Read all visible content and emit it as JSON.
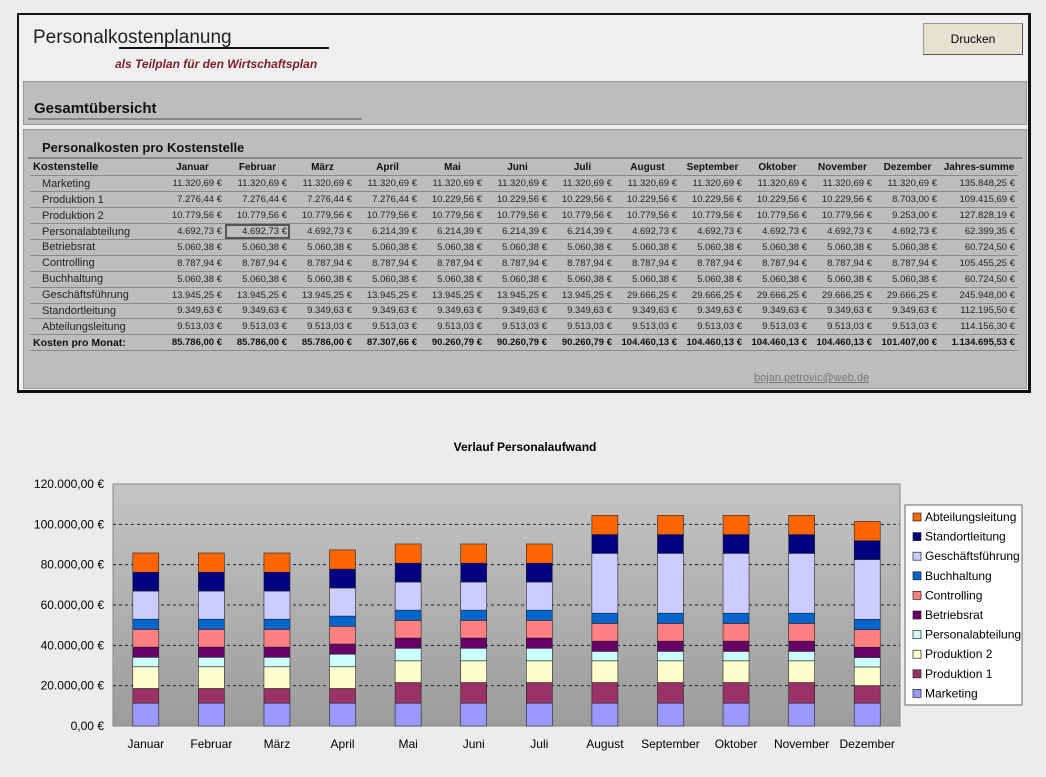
{
  "header": {
    "title": "Personalkostenplanung",
    "subtitle": "als Teilplan für den Wirtschaftsplan",
    "print_label": "Drucken"
  },
  "overview_title": "Gesamtübersicht",
  "table": {
    "title": "Personalkosten pro Kostenstelle",
    "corner": "Kostenstelle",
    "columns": [
      "Januar",
      "Februar",
      "März",
      "April",
      "Mai",
      "Juni",
      "Juli",
      "August",
      "September",
      "Oktober",
      "November",
      "Dezember",
      "Jahres-summe"
    ],
    "rows": [
      {
        "label": "Marketing",
        "cells": [
          "11.320,69 €",
          "11.320,69 €",
          "11.320,69 €",
          "11.320,69 €",
          "11.320,69 €",
          "11.320,69 €",
          "11.320,69 €",
          "11.320,69 €",
          "11.320,69 €",
          "11.320,69 €",
          "11.320,69 €",
          "11.320,69 €",
          "135.848,25 €"
        ]
      },
      {
        "label": "Produktion 1",
        "cells": [
          "7.276,44 €",
          "7.276,44 €",
          "7.276,44 €",
          "7.276,44 €",
          "10.229,56 €",
          "10.229,56 €",
          "10.229,56 €",
          "10.229,56 €",
          "10.229,56 €",
          "10.229,56 €",
          "10.229,56 €",
          "8.703,00 €",
          "109.415,69 €"
        ]
      },
      {
        "label": "Produktion 2",
        "cells": [
          "10.779,56 €",
          "10.779,56 €",
          "10.779,56 €",
          "10.779,56 €",
          "10.779,56 €",
          "10.779,56 €",
          "10.779,56 €",
          "10.779,56 €",
          "10.779,56 €",
          "10.779,56 €",
          "10.779,56 €",
          "9.253,00 €",
          "127.828,19 €"
        ]
      },
      {
        "label": "Personalabteilung",
        "cells": [
          "4.692,73 €",
          "4.692,73 €",
          "4.692,73 €",
          "6.214,39 €",
          "6.214,39 €",
          "6.214,39 €",
          "6.214,39 €",
          "4.692,73 €",
          "4.692,73 €",
          "4.692,73 €",
          "4.692,73 €",
          "4.692,73 €",
          "62.399,35 €"
        ]
      },
      {
        "label": "Betriebsrat",
        "cells": [
          "5.060,38 €",
          "5.060,38 €",
          "5.060,38 €",
          "5.060,38 €",
          "5.060,38 €",
          "5.060,38 €",
          "5.060,38 €",
          "5.060,38 €",
          "5.060,38 €",
          "5.060,38 €",
          "5.060,38 €",
          "5.060,38 €",
          "60.724,50 €"
        ]
      },
      {
        "label": "Controlling",
        "cells": [
          "8.787,94 €",
          "8.787,94 €",
          "8.787,94 €",
          "8.787,94 €",
          "8.787,94 €",
          "8.787,94 €",
          "8.787,94 €",
          "8.787,94 €",
          "8.787,94 €",
          "8.787,94 €",
          "8.787,94 €",
          "8.787,94 €",
          "105.455,25 €"
        ]
      },
      {
        "label": "Buchhaltung",
        "cells": [
          "5.060,38 €",
          "5.060,38 €",
          "5.060,38 €",
          "5.060,38 €",
          "5.060,38 €",
          "5.060,38 €",
          "5.060,38 €",
          "5.060,38 €",
          "5.060,38 €",
          "5.060,38 €",
          "5.060,38 €",
          "5.060,38 €",
          "60.724,50 €"
        ]
      },
      {
        "label": "Geschäftsführung",
        "cells": [
          "13.945,25 €",
          "13.945,25 €",
          "13.945,25 €",
          "13.945,25 €",
          "13.945,25 €",
          "13.945,25 €",
          "13.945,25 €",
          "29.666,25 €",
          "29.666,25 €",
          "29.666,25 €",
          "29.666,25 €",
          "29.666,25 €",
          "245.948,00 €"
        ]
      },
      {
        "label": "Standortleitung",
        "cells": [
          "9.349,63 €",
          "9.349,63 €",
          "9.349,63 €",
          "9.349,63 €",
          "9.349,63 €",
          "9.349,63 €",
          "9.349,63 €",
          "9.349,63 €",
          "9.349,63 €",
          "9.349,63 €",
          "9.349,63 €",
          "9.349,63 €",
          "112.195,50 €"
        ]
      },
      {
        "label": "Abteilungsleitung",
        "cells": [
          "9.513,03 €",
          "9.513,03 €",
          "9.513,03 €",
          "9.513,03 €",
          "9.513,03 €",
          "9.513,03 €",
          "9.513,03 €",
          "9.513,03 €",
          "9.513,03 €",
          "9.513,03 €",
          "9.513,03 €",
          "9.513,03 €",
          "114.156,30 €"
        ]
      }
    ],
    "total": {
      "label": "Kosten pro Monat:",
      "cells": [
        "85.786,00 €",
        "85.786,00 €",
        "85.786,00 €",
        "87.307,66 €",
        "90.260,79 €",
        "90.260,79 €",
        "90.260,79 €",
        "104.460,13 €",
        "104.460,13 €",
        "104.460,13 €",
        "104.460,13 €",
        "101.407,00 €",
        "1.134.695,53 €"
      ]
    },
    "email": "bojan.petrovic@web.de"
  },
  "chart_data": {
    "type": "bar",
    "stacked": true,
    "title": "Verlauf Personalaufwand",
    "categories": [
      "Januar",
      "Februar",
      "März",
      "April",
      "Mai",
      "Juni",
      "Juli",
      "August",
      "September",
      "Oktober",
      "November",
      "Dezember"
    ],
    "ylim": [
      0,
      120000
    ],
    "yticks": [
      "0,00 €",
      "20.000,00 €",
      "40.000,00 €",
      "60.000,00 €",
      "80.000,00 €",
      "100.000,00 €",
      "120.000,00 €"
    ],
    "legend_position": "right",
    "series": [
      {
        "name": "Marketing",
        "color": "#9999ff",
        "values": [
          11320.69,
          11320.69,
          11320.69,
          11320.69,
          11320.69,
          11320.69,
          11320.69,
          11320.69,
          11320.69,
          11320.69,
          11320.69,
          11320.69
        ]
      },
      {
        "name": "Produktion 1",
        "color": "#993366",
        "values": [
          7276.44,
          7276.44,
          7276.44,
          7276.44,
          10229.56,
          10229.56,
          10229.56,
          10229.56,
          10229.56,
          10229.56,
          10229.56,
          8703
        ]
      },
      {
        "name": "Produktion 2",
        "color": "#ffffcc",
        "values": [
          10779.56,
          10779.56,
          10779.56,
          10779.56,
          10779.56,
          10779.56,
          10779.56,
          10779.56,
          10779.56,
          10779.56,
          10779.56,
          9253
        ]
      },
      {
        "name": "Personalabteilung",
        "color": "#ccffff",
        "values": [
          4692.73,
          4692.73,
          4692.73,
          6214.39,
          6214.39,
          6214.39,
          6214.39,
          4692.73,
          4692.73,
          4692.73,
          4692.73,
          4692.73
        ]
      },
      {
        "name": "Betriebsrat",
        "color": "#660066",
        "values": [
          5060.38,
          5060.38,
          5060.38,
          5060.38,
          5060.38,
          5060.38,
          5060.38,
          5060.38,
          5060.38,
          5060.38,
          5060.38,
          5060.38
        ]
      },
      {
        "name": "Controlling",
        "color": "#ff8080",
        "values": [
          8787.94,
          8787.94,
          8787.94,
          8787.94,
          8787.94,
          8787.94,
          8787.94,
          8787.94,
          8787.94,
          8787.94,
          8787.94,
          8787.94
        ]
      },
      {
        "name": "Buchhaltung",
        "color": "#0066cc",
        "values": [
          5060.38,
          5060.38,
          5060.38,
          5060.38,
          5060.38,
          5060.38,
          5060.38,
          5060.38,
          5060.38,
          5060.38,
          5060.38,
          5060.38
        ]
      },
      {
        "name": "Geschäftsführung",
        "color": "#ccccff",
        "values": [
          13945.25,
          13945.25,
          13945.25,
          13945.25,
          13945.25,
          13945.25,
          13945.25,
          29666.25,
          29666.25,
          29666.25,
          29666.25,
          29666.25
        ]
      },
      {
        "name": "Standortleitung",
        "color": "#000080",
        "values": [
          9349.63,
          9349.63,
          9349.63,
          9349.63,
          9349.63,
          9349.63,
          9349.63,
          9349.63,
          9349.63,
          9349.63,
          9349.63,
          9349.63
        ]
      },
      {
        "name": "Abteilungsleitung",
        "color": "#ff6600",
        "values": [
          9513.03,
          9513.03,
          9513.03,
          9513.03,
          9513.03,
          9513.03,
          9513.03,
          9513.03,
          9513.03,
          9513.03,
          9513.03,
          9513.03
        ]
      }
    ]
  }
}
